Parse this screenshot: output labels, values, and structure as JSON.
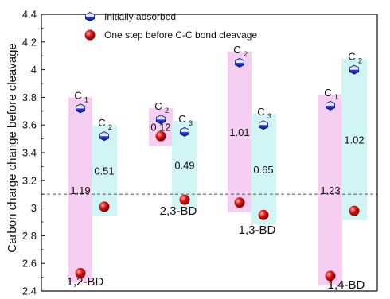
{
  "chart_data": {
    "type": "scatter",
    "ylabel": "Carbon charge change before cleavage",
    "ylim": [
      2.4,
      4.4
    ],
    "yticks": [
      "2.4",
      "2.6",
      "2.8",
      "3",
      "3.2",
      "3.4",
      "3.6",
      "3.8",
      "4",
      "4.2",
      "4.4"
    ],
    "legend": {
      "placement": "top-left",
      "items": [
        {
          "label": "Initially adsorbed",
          "marker": "blue-hexagon"
        },
        {
          "label": "One step before C-C bond cleavage",
          "marker": "red-sphere"
        }
      ]
    },
    "reference_line": {
      "y": 3.1,
      "style": "dashed"
    },
    "groups": [
      {
        "name": "1,2-BD",
        "carbons": [
          {
            "atom": "C",
            "sub": "1",
            "initial": 3.72,
            "before_cleavage": 2.53,
            "diff": "1.19",
            "band": "pink"
          },
          {
            "atom": "C",
            "sub": "2",
            "initial": 3.52,
            "before_cleavage": 3.01,
            "diff": "0.51",
            "band": "cyan"
          }
        ]
      },
      {
        "name": "2,3-BD",
        "carbons": [
          {
            "atom": "C",
            "sub": "2",
            "initial": 3.64,
            "before_cleavage": 3.52,
            "diff": "0.12",
            "band": "pink"
          },
          {
            "atom": "C",
            "sub": "3",
            "initial": 3.55,
            "before_cleavage": 3.06,
            "diff": "0.49",
            "band": "cyan"
          }
        ]
      },
      {
        "name": "1,3-BD",
        "carbons": [
          {
            "atom": "C",
            "sub": "2",
            "initial": 4.05,
            "before_cleavage": 3.04,
            "diff": "1.01",
            "band": "pink"
          },
          {
            "atom": "C",
            "sub": "3",
            "initial": 3.6,
            "before_cleavage": 2.95,
            "diff": "0.65",
            "band": "cyan"
          }
        ]
      },
      {
        "name": "1,4-BD",
        "carbons": [
          {
            "atom": "C",
            "sub": "1",
            "initial": 3.74,
            "before_cleavage": 2.51,
            "diff": "1.23",
            "band": "pink"
          },
          {
            "atom": "C",
            "sub": "2",
            "initial": 4.0,
            "before_cleavage": 2.98,
            "diff": "1.02",
            "band": "cyan"
          }
        ]
      }
    ],
    "colors": {
      "pink_band": "#f3c6ee",
      "cyan_band": "#c9f3f3",
      "initial_marker": "#1f2fd6",
      "cleavage_marker": "#e01818",
      "reference_line": "#666666"
    }
  }
}
